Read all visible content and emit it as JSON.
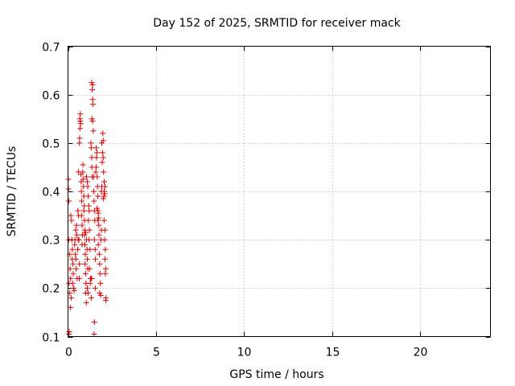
{
  "chart_data": {
    "type": "scatter",
    "title": "Day 152 of 2025, SRMTID for receiver mack",
    "xlabel": "GPS time / hours",
    "ylabel": "SRMTID / TECUs",
    "xlim": [
      0,
      24
    ],
    "ylim": [
      0.1,
      0.7
    ],
    "xticks": [
      0,
      5,
      10,
      15,
      20
    ],
    "xtick_labels": [
      "0",
      "5",
      "10",
      "15",
      "20"
    ],
    "yticks": [
      0.1,
      0.2,
      0.3,
      0.4,
      0.5,
      0.6,
      0.7
    ],
    "ytick_labels": [
      "0.1",
      "0.2",
      "0.3",
      "0.4",
      "0.5",
      "0.6",
      "0.7"
    ],
    "grid": true,
    "marker": "+",
    "marker_color": "#e00000",
    "series": [
      {
        "name": "SRMTID",
        "points": [
          [
            0.02,
            0.425
          ],
          [
            0.03,
            0.405
          ],
          [
            0.05,
            0.38
          ],
          [
            0.04,
            0.3
          ],
          [
            0.06,
            0.21
          ],
          [
            0.05,
            0.105
          ],
          [
            0.07,
            0.11
          ],
          [
            0.1,
            0.27
          ],
          [
            0.12,
            0.24
          ],
          [
            0.1,
            0.19
          ],
          [
            0.15,
            0.22
          ],
          [
            0.18,
            0.18
          ],
          [
            0.14,
            0.16
          ],
          [
            0.16,
            0.35
          ],
          [
            0.2,
            0.34
          ],
          [
            0.22,
            0.3
          ],
          [
            0.25,
            0.28
          ],
          [
            0.24,
            0.26
          ],
          [
            0.28,
            0.25
          ],
          [
            0.3,
            0.23
          ],
          [
            0.26,
            0.21
          ],
          [
            0.32,
            0.2
          ],
          [
            0.35,
            0.195
          ],
          [
            0.38,
            0.29
          ],
          [
            0.4,
            0.3
          ],
          [
            0.42,
            0.27
          ],
          [
            0.45,
            0.26
          ],
          [
            0.44,
            0.32
          ],
          [
            0.48,
            0.33
          ],
          [
            0.5,
            0.31
          ],
          [
            0.46,
            0.24
          ],
          [
            0.52,
            0.22
          ],
          [
            0.55,
            0.28
          ],
          [
            0.58,
            0.3
          ],
          [
            0.56,
            0.36
          ],
          [
            0.6,
            0.35
          ],
          [
            0.62,
            0.3
          ],
          [
            0.65,
            0.25
          ],
          [
            0.64,
            0.22
          ],
          [
            0.6,
            0.44
          ],
          [
            0.65,
            0.5
          ],
          [
            0.66,
            0.51
          ],
          [
            0.68,
            0.53
          ],
          [
            0.67,
            0.55
          ],
          [
            0.7,
            0.56
          ],
          [
            0.72,
            0.54
          ],
          [
            0.7,
            0.545
          ],
          [
            0.74,
            0.435
          ],
          [
            0.75,
            0.42
          ],
          [
            0.76,
            0.4
          ],
          [
            0.78,
            0.38
          ],
          [
            0.77,
            0.35
          ],
          [
            0.8,
            0.33
          ],
          [
            0.82,
            0.31
          ],
          [
            0.8,
            0.29
          ],
          [
            0.84,
            0.44
          ],
          [
            0.85,
            0.455
          ],
          [
            0.86,
            0.425
          ],
          [
            0.88,
            0.41
          ],
          [
            0.9,
            0.39
          ],
          [
            0.92,
            0.37
          ],
          [
            0.9,
            0.36
          ],
          [
            0.94,
            0.34
          ],
          [
            0.95,
            0.31
          ],
          [
            0.96,
            0.29
          ],
          [
            0.98,
            0.27
          ],
          [
            0.97,
            0.25
          ],
          [
            1.0,
            0.23
          ],
          [
            1.02,
            0.21
          ],
          [
            1.0,
            0.19
          ],
          [
            1.04,
            0.17
          ],
          [
            0.95,
            0.32
          ],
          [
            1.0,
            0.315
          ],
          [
            1.05,
            0.3
          ],
          [
            1.08,
            0.28
          ],
          [
            1.1,
            0.26
          ],
          [
            1.12,
            0.24
          ],
          [
            1.1,
            0.2
          ],
          [
            1.14,
            0.19
          ],
          [
            1.05,
            0.43
          ],
          [
            1.1,
            0.42
          ],
          [
            1.12,
            0.41
          ],
          [
            1.15,
            0.39
          ],
          [
            1.18,
            0.37
          ],
          [
            1.2,
            0.36
          ],
          [
            1.16,
            0.34
          ],
          [
            1.22,
            0.32
          ],
          [
            1.2,
            0.3
          ],
          [
            1.25,
            0.28
          ],
          [
            1.22,
            0.24
          ],
          [
            1.28,
            0.22
          ],
          [
            1.26,
            0.21
          ],
          [
            1.3,
            0.22
          ],
          [
            1.32,
            0.18
          ],
          [
            1.34,
            0.22
          ],
          [
            1.3,
            0.5
          ],
          [
            1.32,
            0.49
          ],
          [
            1.35,
            0.47
          ],
          [
            1.36,
            0.45
          ],
          [
            1.38,
            0.43
          ],
          [
            1.35,
            0.625
          ],
          [
            1.4,
            0.62
          ],
          [
            1.38,
            0.61
          ],
          [
            1.4,
            0.59
          ],
          [
            1.42,
            0.58
          ],
          [
            1.36,
            0.55
          ],
          [
            1.4,
            0.545
          ],
          [
            1.44,
            0.525
          ],
          [
            1.45,
            0.43
          ],
          [
            1.46,
            0.4
          ],
          [
            1.48,
            0.38
          ],
          [
            1.5,
            0.36
          ],
          [
            1.52,
            0.34
          ],
          [
            1.5,
            0.3
          ],
          [
            1.54,
            0.28
          ],
          [
            1.56,
            0.26
          ],
          [
            1.55,
            0.2
          ],
          [
            1.5,
            0.13
          ],
          [
            1.48,
            0.105
          ],
          [
            1.58,
            0.44
          ],
          [
            1.6,
            0.45
          ],
          [
            1.62,
            0.47
          ],
          [
            1.64,
            0.48
          ],
          [
            1.6,
            0.49
          ],
          [
            1.66,
            0.43
          ],
          [
            1.68,
            0.41
          ],
          [
            1.7,
            0.39
          ],
          [
            1.65,
            0.365
          ],
          [
            1.7,
            0.36
          ],
          [
            1.72,
            0.355
          ],
          [
            1.74,
            0.345
          ],
          [
            1.7,
            0.34
          ],
          [
            1.75,
            0.33
          ],
          [
            1.76,
            0.31
          ],
          [
            1.72,
            0.29
          ],
          [
            1.78,
            0.27
          ],
          [
            1.8,
            0.25
          ],
          [
            1.82,
            0.23
          ],
          [
            1.84,
            0.21
          ],
          [
            1.8,
            0.19
          ],
          [
            1.86,
            0.185
          ],
          [
            1.88,
            0.3
          ],
          [
            1.9,
            0.32
          ],
          [
            1.9,
            0.4
          ],
          [
            1.92,
            0.41
          ],
          [
            1.94,
            0.46
          ],
          [
            1.96,
            0.48
          ],
          [
            1.92,
            0.5
          ],
          [
            1.98,
            0.52
          ],
          [
            2.0,
            0.47
          ],
          [
            2.02,
            0.44
          ],
          [
            2.0,
            0.385
          ],
          [
            2.05,
            0.39
          ],
          [
            2.06,
            0.4
          ],
          [
            2.08,
            0.395
          ],
          [
            2.05,
            0.34
          ],
          [
            2.1,
            0.32
          ],
          [
            2.08,
            0.3
          ],
          [
            2.12,
            0.28
          ],
          [
            2.1,
            0.26
          ],
          [
            2.14,
            0.24
          ],
          [
            2.12,
            0.23
          ],
          [
            2.16,
            0.18
          ],
          [
            2.15,
            0.175
          ],
          [
            2.06,
            0.42
          ],
          [
            2.1,
            0.41
          ],
          [
            2.0,
            0.505
          ]
        ]
      }
    ]
  }
}
